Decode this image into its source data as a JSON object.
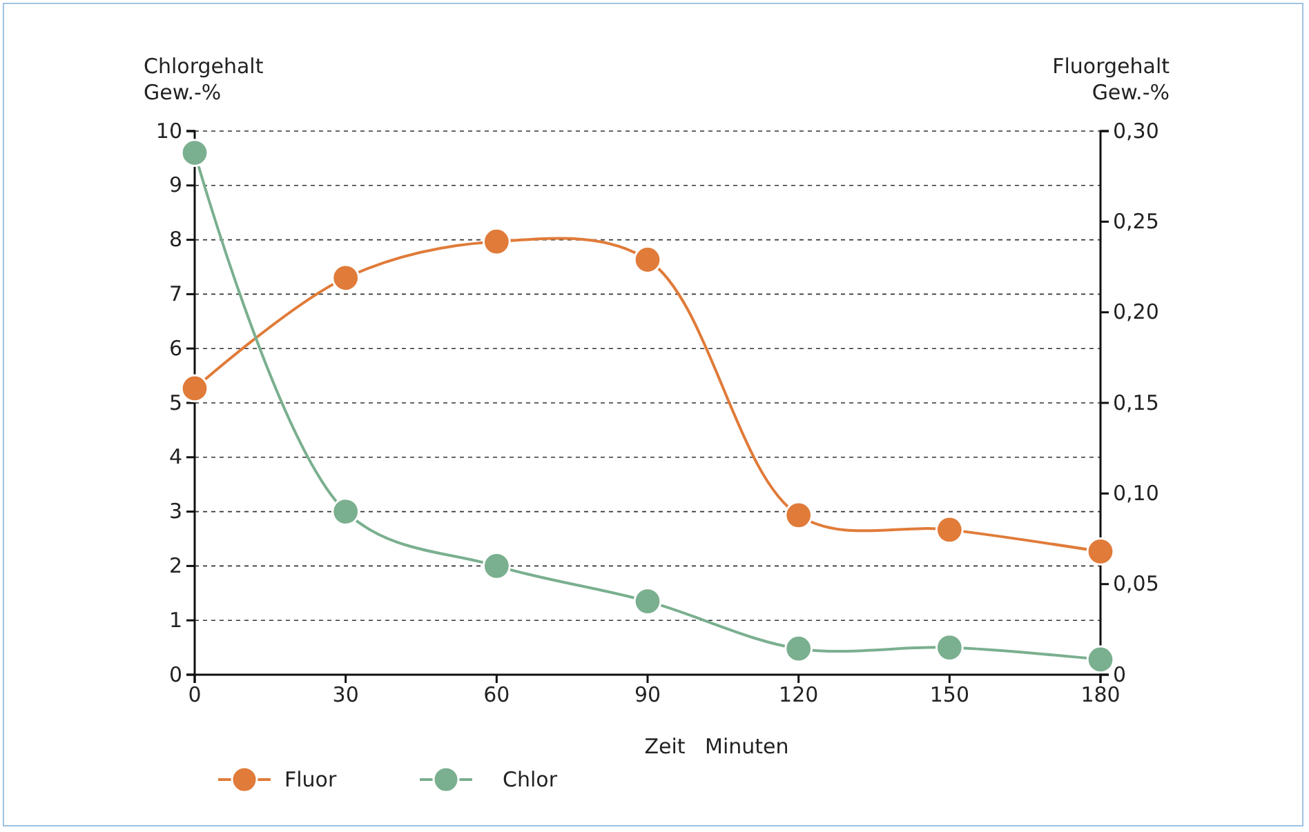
{
  "chart_data": {
    "type": "line",
    "xlabel": "Zeit   Minuten",
    "ylabel": "Chlorgehalt\nGew.-%",
    "y2label": "Fluorgehalt\nGew.-%",
    "x": [
      0,
      30,
      60,
      90,
      120,
      150,
      180
    ],
    "series": [
      {
        "name": "Fluor",
        "color": "#e07b39",
        "axis": "y2",
        "values": [
          0.158,
          0.219,
          0.239,
          0.229,
          0.088,
          0.08,
          0.068
        ]
      },
      {
        "name": "Chlor",
        "color": "#7aaf8f",
        "values": [
          9.6,
          3.0,
          2.0,
          1.35,
          0.48,
          0.5,
          0.28
        ]
      }
    ],
    "xlim": [
      0,
      180
    ],
    "xticks": [
      0,
      30,
      60,
      90,
      120,
      150,
      180
    ],
    "ylim": [
      0,
      10
    ],
    "yticks": [
      0,
      1,
      2,
      3,
      4,
      5,
      6,
      7,
      8,
      9,
      10
    ],
    "y2lim": [
      0,
      0.3
    ],
    "y2ticks": [
      {
        "value": 0,
        "label": "0"
      },
      {
        "value": 0.05,
        "label": "0,05"
      },
      {
        "value": 0.1,
        "label": "0,10"
      },
      {
        "value": 0.15,
        "label": "0,15"
      },
      {
        "value": 0.2,
        "label": "0,20"
      },
      {
        "value": 0.25,
        "label": "0,25"
      },
      {
        "value": 0.3,
        "label": "0,30"
      }
    ],
    "grid": "y",
    "legend": "bottom",
    "marker": "circle",
    "line_style": "solid"
  }
}
